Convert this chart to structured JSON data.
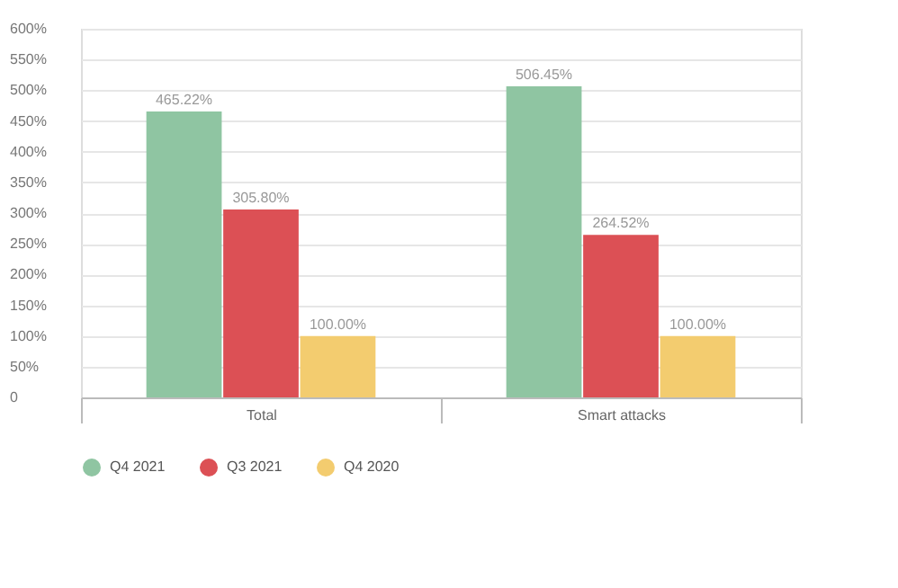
{
  "chart_data": {
    "type": "bar",
    "categories": [
      "Total",
      "Smart attacks"
    ],
    "series": [
      {
        "name": "Q4 2021",
        "color": "#8fc5a2",
        "values": [
          465.22,
          506.45
        ],
        "value_labels": [
          "465.22%",
          "506.45%"
        ]
      },
      {
        "name": "Q3 2021",
        "color": "#dc5055",
        "values": [
          305.8,
          264.52
        ],
        "value_labels": [
          "305.80%",
          "264.52%"
        ]
      },
      {
        "name": "Q4 2020",
        "color": "#f3cc6f",
        "values": [
          100.0,
          100.0
        ],
        "value_labels": [
          "100.00%",
          "100.00%"
        ]
      }
    ],
    "ylim": [
      0,
      600
    ],
    "yticks": [
      {
        "value": 0,
        "label": "0"
      },
      {
        "value": 50,
        "label": "50%"
      },
      {
        "value": 100,
        "label": "100%"
      },
      {
        "value": 150,
        "label": "150%"
      },
      {
        "value": 200,
        "label": "200%"
      },
      {
        "value": 250,
        "label": "250%"
      },
      {
        "value": 300,
        "label": "300%"
      },
      {
        "value": 350,
        "label": "350%"
      },
      {
        "value": 400,
        "label": "400%"
      },
      {
        "value": 450,
        "label": "450%"
      },
      {
        "value": 500,
        "label": "500%"
      },
      {
        "value": 550,
        "label": "550%"
      },
      {
        "value": 600,
        "label": "600%"
      }
    ],
    "grid": "y",
    "legend": "bottom"
  }
}
